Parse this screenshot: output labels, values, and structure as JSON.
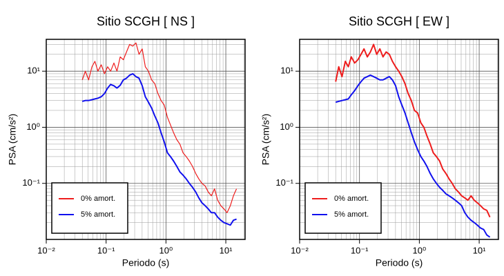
{
  "chart_data": [
    {
      "type": "line",
      "title": "Sitio SCGH [ NS ]",
      "xlabel": "Periodo (s)",
      "ylabel": "PSA (cm/s²)",
      "log_x": true,
      "log_y": true,
      "grid": true,
      "legend": "lower left",
      "xlim": [
        0.01,
        21
      ],
      "ylim": [
        0.01,
        37
      ],
      "xticks": [
        {
          "value": 0.01,
          "label": "10⁻²"
        },
        {
          "value": 0.1,
          "label": "10⁻¹"
        },
        {
          "value": 1,
          "label": "10⁰"
        },
        {
          "value": 10,
          "label": "10¹"
        }
      ],
      "yticks": [
        {
          "value": 0.1,
          "label": "10⁻¹"
        },
        {
          "value": 1,
          "label": "10⁰"
        },
        {
          "value": 10,
          "label": "10¹"
        }
      ],
      "x": [
        0.04,
        0.045,
        0.051,
        0.058,
        0.065,
        0.073,
        0.083,
        0.094,
        0.106,
        0.119,
        0.135,
        0.152,
        0.172,
        0.194,
        0.219,
        0.247,
        0.279,
        0.315,
        0.355,
        0.401,
        0.452,
        0.51,
        0.576,
        0.65,
        0.734,
        0.828,
        0.935,
        1.06,
        1.19,
        1.34,
        1.52,
        1.71,
        1.93,
        2.18,
        2.46,
        2.78,
        3.14,
        3.54,
        3.99,
        4.51,
        5.09,
        5.74,
        6.48,
        7.31,
        8.25,
        9.31,
        10.5,
        11.9,
        13.4,
        15.1
      ],
      "series": [
        {
          "name": "0% amort.",
          "color": "#ee1c1c",
          "width": 1.2,
          "values": [
            7,
            10,
            7,
            12,
            15,
            10,
            13,
            9,
            12,
            10,
            14,
            10,
            18,
            16,
            22,
            30,
            28,
            32,
            20,
            25,
            12,
            10,
            7,
            6,
            4,
            3,
            2.5,
            1.5,
            1.1,
            0.8,
            0.6,
            0.5,
            0.35,
            0.3,
            0.25,
            0.2,
            0.15,
            0.12,
            0.1,
            0.09,
            0.07,
            0.06,
            0.08,
            0.05,
            0.04,
            0.035,
            0.03,
            0.04,
            0.06,
            0.08
          ]
        },
        {
          "name": "5% amort.",
          "color": "#1010ee",
          "width": 2,
          "values": [
            2.9,
            3.0,
            3.0,
            3.1,
            3.2,
            3.3,
            3.5,
            4.0,
            5.0,
            5.8,
            5.5,
            5.0,
            5.6,
            7.0,
            7.5,
            8.5,
            9.0,
            8.0,
            7.5,
            5.5,
            3.5,
            2.8,
            2.2,
            1.6,
            1.2,
            0.8,
            0.55,
            0.35,
            0.3,
            0.25,
            0.2,
            0.16,
            0.14,
            0.12,
            0.1,
            0.085,
            0.07,
            0.055,
            0.045,
            0.04,
            0.035,
            0.03,
            0.03,
            0.025,
            0.022,
            0.02,
            0.019,
            0.018,
            0.022,
            0.023
          ]
        }
      ]
    },
    {
      "type": "line",
      "title": "Sitio SCGH [ EW ]",
      "xlabel": "Periodo (s)",
      "ylabel": "PSA (cm/s²)",
      "log_x": true,
      "log_y": true,
      "grid": true,
      "legend": "lower left",
      "xlim": [
        0.01,
        21
      ],
      "ylim": [
        0.01,
        37
      ],
      "xticks": [
        {
          "value": 0.01,
          "label": "10⁻²"
        },
        {
          "value": 0.1,
          "label": "10⁻¹"
        },
        {
          "value": 1,
          "label": "10⁰"
        },
        {
          "value": 10,
          "label": "10¹"
        }
      ],
      "yticks": [
        {
          "value": 0.1,
          "label": "10⁻¹"
        },
        {
          "value": 1,
          "label": "10⁰"
        },
        {
          "value": 10,
          "label": "10¹"
        }
      ],
      "x": [
        0.04,
        0.045,
        0.051,
        0.058,
        0.065,
        0.073,
        0.083,
        0.094,
        0.106,
        0.119,
        0.135,
        0.152,
        0.172,
        0.194,
        0.219,
        0.247,
        0.279,
        0.315,
        0.355,
        0.401,
        0.452,
        0.51,
        0.576,
        0.65,
        0.734,
        0.828,
        0.935,
        1.06,
        1.19,
        1.34,
        1.52,
        1.71,
        1.93,
        2.18,
        2.46,
        2.78,
        3.14,
        3.54,
        3.99,
        4.51,
        5.09,
        5.74,
        6.48,
        7.31,
        8.25,
        9.31,
        10.5,
        11.9,
        13.4,
        15.1
      ],
      "series": [
        {
          "name": "0% amort.",
          "color": "#ee1c1c",
          "width": 2,
          "values": [
            6.5,
            12,
            8,
            15,
            12,
            18,
            14,
            16,
            20,
            25,
            18,
            22,
            30,
            20,
            25,
            18,
            22,
            20,
            15,
            12,
            10,
            8,
            6,
            4,
            3,
            2,
            1.8,
            1.2,
            1.0,
            0.7,
            0.5,
            0.35,
            0.3,
            0.25,
            0.18,
            0.15,
            0.12,
            0.1,
            0.08,
            0.07,
            0.06,
            0.055,
            0.05,
            0.06,
            0.05,
            0.045,
            0.04,
            0.035,
            0.033,
            0.025
          ]
        },
        {
          "name": "5% amort.",
          "color": "#1010ee",
          "width": 2,
          "values": [
            2.8,
            2.9,
            3.0,
            3.1,
            3.2,
            3.8,
            4.5,
            5.5,
            6.5,
            7.5,
            8.0,
            8.5,
            8.0,
            7.5,
            7.0,
            7.0,
            7.5,
            8.0,
            7.0,
            5.5,
            3.5,
            2.5,
            1.8,
            1.2,
            0.8,
            0.55,
            0.4,
            0.3,
            0.25,
            0.2,
            0.15,
            0.12,
            0.1,
            0.085,
            0.075,
            0.065,
            0.06,
            0.055,
            0.05,
            0.045,
            0.04,
            0.03,
            0.025,
            0.022,
            0.02,
            0.018,
            0.016,
            0.015,
            0.012,
            0.011
          ]
        }
      ]
    }
  ]
}
